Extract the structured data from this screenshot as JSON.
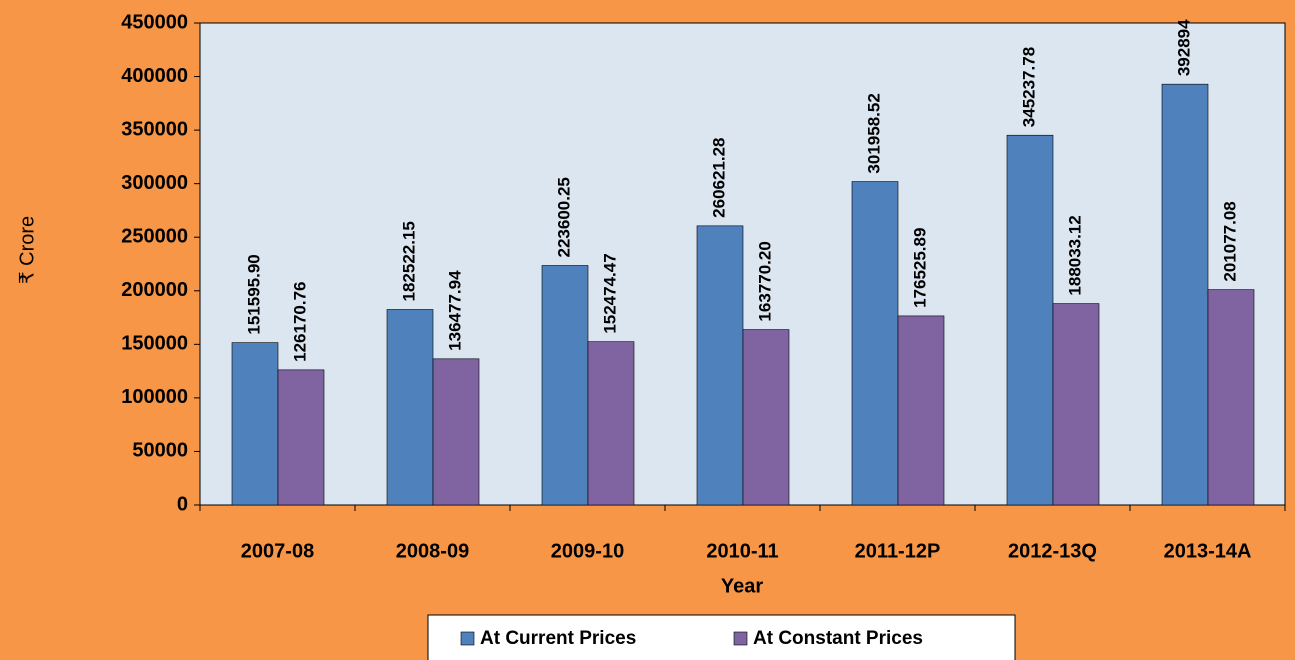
{
  "chart_data": {
    "type": "bar",
    "x_label": "Year",
    "y_label": "₹ Crore",
    "categories": [
      "2007-08",
      "2008-09",
      "2009-10",
      "2010-11",
      "2011-12P",
      "2012-13Q",
      "2013-14A"
    ],
    "series": [
      {
        "name": "At Current Prices",
        "color": "#4f81bd",
        "values": [
          151595.9,
          182522.15,
          223600.25,
          260621.28,
          301958.52,
          345237.78,
          392894
        ],
        "value_labels": [
          "151595.90",
          "182522.15",
          "223600.25",
          "260621.28",
          "301958.52",
          "345237.78",
          "392894"
        ]
      },
      {
        "name": "At Constant Prices",
        "color": "#8064a2",
        "values": [
          126170.76,
          136477.94,
          152474.47,
          163770.2,
          176525.89,
          188033.12,
          201077.08
        ],
        "value_labels": [
          "126170.76",
          "136477.94",
          "152474.47",
          "163770.20",
          "176525.89",
          "188033.12",
          "201077.08"
        ]
      }
    ],
    "ylim": [
      0,
      450000
    ],
    "yticks": [
      0,
      50000,
      100000,
      150000,
      200000,
      250000,
      300000,
      350000,
      400000,
      450000
    ],
    "grid": false,
    "legend": "bottom"
  }
}
